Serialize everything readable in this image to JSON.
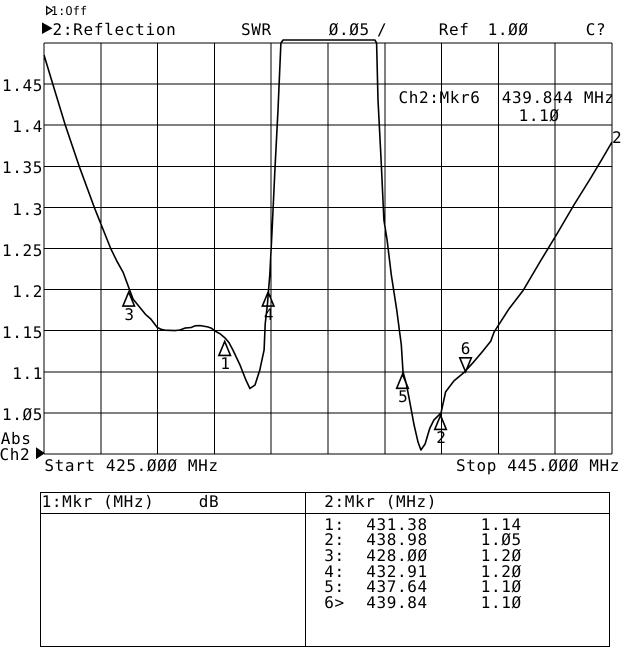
{
  "colors": {
    "background": "#ffffff",
    "ink": "#000000"
  },
  "title_bar": {
    "ch1": {
      "label": "1:Off"
    },
    "ch2": {
      "label": "2:Reflection",
      "format": "SWR",
      "scale_per_div": "0.05",
      "scale_separator": "/",
      "ref_label": "Ref",
      "ref_value": "1.00",
      "cal_status": "C?"
    }
  },
  "plot": {
    "y_axis_labels": [
      "1.45",
      "1.4",
      "1.35",
      "1.3",
      "1.25",
      "1.2",
      "1.15",
      "1.1",
      "1.05"
    ],
    "start_label": "Start 425.000 MHz",
    "stop_label": "Stop 445.000 MHz",
    "amplitude_mode": "Abs",
    "channel_label": "Ch2",
    "trace_number": "2",
    "marker_readout": {
      "label": "Ch2:Mkr6",
      "frequency": "439.844 MHz",
      "value": "1.10"
    }
  },
  "chart_data": {
    "type": "line",
    "title": "",
    "format": "SWR",
    "x_unit": "MHz",
    "x_start": 425.0,
    "x_stop": 445.0,
    "x_divisions": 10,
    "y_ref": 1.0,
    "y_scale_per_div": 0.05,
    "y_min": 1.0,
    "y_max": 1.5,
    "y_divisions": 10,
    "grid": true,
    "clip_level": 1.5036,
    "series": [
      {
        "name": "2:Reflection SWR",
        "points": [
          [
            425.0,
            1.4854
          ],
          [
            425.31,
            1.45
          ],
          [
            425.75,
            1.4
          ],
          [
            426.24,
            1.35
          ],
          [
            426.77,
            1.3
          ],
          [
            427.35,
            1.25
          ],
          [
            427.56,
            1.235
          ],
          [
            427.79,
            1.2208
          ],
          [
            428.01,
            1.2
          ],
          [
            428.14,
            1.1882
          ],
          [
            428.33,
            1.1802
          ],
          [
            428.57,
            1.1699
          ],
          [
            428.76,
            1.1642
          ],
          [
            428.99,
            1.1539
          ],
          [
            429.13,
            1.1516
          ],
          [
            429.26,
            1.1506
          ],
          [
            429.61,
            1.1501
          ],
          [
            429.79,
            1.1509
          ],
          [
            429.96,
            1.1532
          ],
          [
            430.18,
            1.1539
          ],
          [
            430.32,
            1.156
          ],
          [
            430.51,
            1.1562
          ],
          [
            430.76,
            1.1546
          ],
          [
            430.89,
            1.1532
          ],
          [
            431.02,
            1.1496
          ],
          [
            431.2,
            1.1462
          ],
          [
            431.38,
            1.141
          ],
          [
            431.51,
            1.1356
          ],
          [
            431.65,
            1.1265
          ],
          [
            431.9,
            1.1083
          ],
          [
            432.11,
            1.09
          ],
          [
            432.25,
            1.0797
          ],
          [
            432.43,
            1.0839
          ],
          [
            432.6,
            1.1022
          ],
          [
            432.75,
            1.1265
          ],
          [
            432.79,
            1.1584
          ],
          [
            432.83,
            1.1708
          ],
          [
            432.87,
            1.1832
          ],
          [
            432.91,
            1.2
          ],
          [
            432.95,
            1.218
          ],
          [
            433.03,
            1.2725
          ],
          [
            433.13,
            1.3455
          ],
          [
            433.24,
            1.4185
          ],
          [
            433.34,
            1.5
          ],
          [
            433.42,
            1.5036
          ],
          [
            436.65,
            1.5036
          ],
          [
            436.71,
            1.5
          ],
          [
            436.76,
            1.4307
          ],
          [
            436.87,
            1.3577
          ],
          [
            436.97,
            1.2847
          ],
          [
            437.08,
            1.2603
          ],
          [
            437.23,
            1.2179
          ],
          [
            437.42,
            1.1754
          ],
          [
            437.58,
            1.133
          ],
          [
            437.64,
            1.1
          ],
          [
            437.75,
            1.0864
          ],
          [
            437.85,
            1.0692
          ],
          [
            438.03,
            1.0352
          ],
          [
            438.17,
            1.0146
          ],
          [
            438.27,
            1.0049
          ],
          [
            438.42,
            1.0122
          ],
          [
            438.58,
            1.031
          ],
          [
            438.73,
            1.0414
          ],
          [
            438.98,
            1.05
          ],
          [
            439.14,
            1.0756
          ],
          [
            439.44,
            1.0892
          ],
          [
            439.8,
            1.0995
          ],
          [
            440.13,
            1.1121
          ],
          [
            440.46,
            1.1256
          ],
          [
            440.73,
            1.1371
          ],
          [
            440.85,
            1.1484
          ],
          [
            441.37,
            1.1764
          ],
          [
            441.87,
            1.1989
          ],
          [
            442.46,
            1.2336
          ],
          [
            443.06,
            1.2677
          ],
          [
            443.66,
            1.3029
          ],
          [
            444.23,
            1.3345
          ],
          [
            444.65,
            1.3589
          ],
          [
            445.0,
            1.3796
          ]
        ]
      }
    ],
    "markers": [
      {
        "number": "1",
        "freq_mhz": 431.38,
        "value": 1.14,
        "shape": "up"
      },
      {
        "number": "2",
        "freq_mhz": 438.98,
        "value": 1.05,
        "shape": "up"
      },
      {
        "number": "3",
        "freq_mhz": 428.0,
        "value": 1.2,
        "shape": "up"
      },
      {
        "number": "4",
        "freq_mhz": 432.91,
        "value": 1.2,
        "shape": "up"
      },
      {
        "number": "5",
        "freq_mhz": 437.64,
        "value": 1.1,
        "shape": "up"
      },
      {
        "number": "6",
        "freq_mhz": 439.844,
        "value": 1.1,
        "shape": "down",
        "active": true
      }
    ]
  },
  "marker_table": {
    "left": {
      "header": "1:Mkr (MHz)",
      "unit_header": "dB",
      "rows": []
    },
    "right": {
      "header": "2:Mkr (MHz)",
      "rows": [
        {
          "n": "1:",
          "frequency": "431.38",
          "value": "1.14"
        },
        {
          "n": "2:",
          "frequency": "438.98",
          "value": "1.05"
        },
        {
          "n": "3:",
          "frequency": "428.00",
          "value": "1.20"
        },
        {
          "n": "4:",
          "frequency": "432.91",
          "value": "1.20"
        },
        {
          "n": "5:",
          "frequency": "437.64",
          "value": "1.10"
        },
        {
          "n": "6>",
          "frequency": "439.84",
          "value": "1.10"
        }
      ]
    }
  }
}
